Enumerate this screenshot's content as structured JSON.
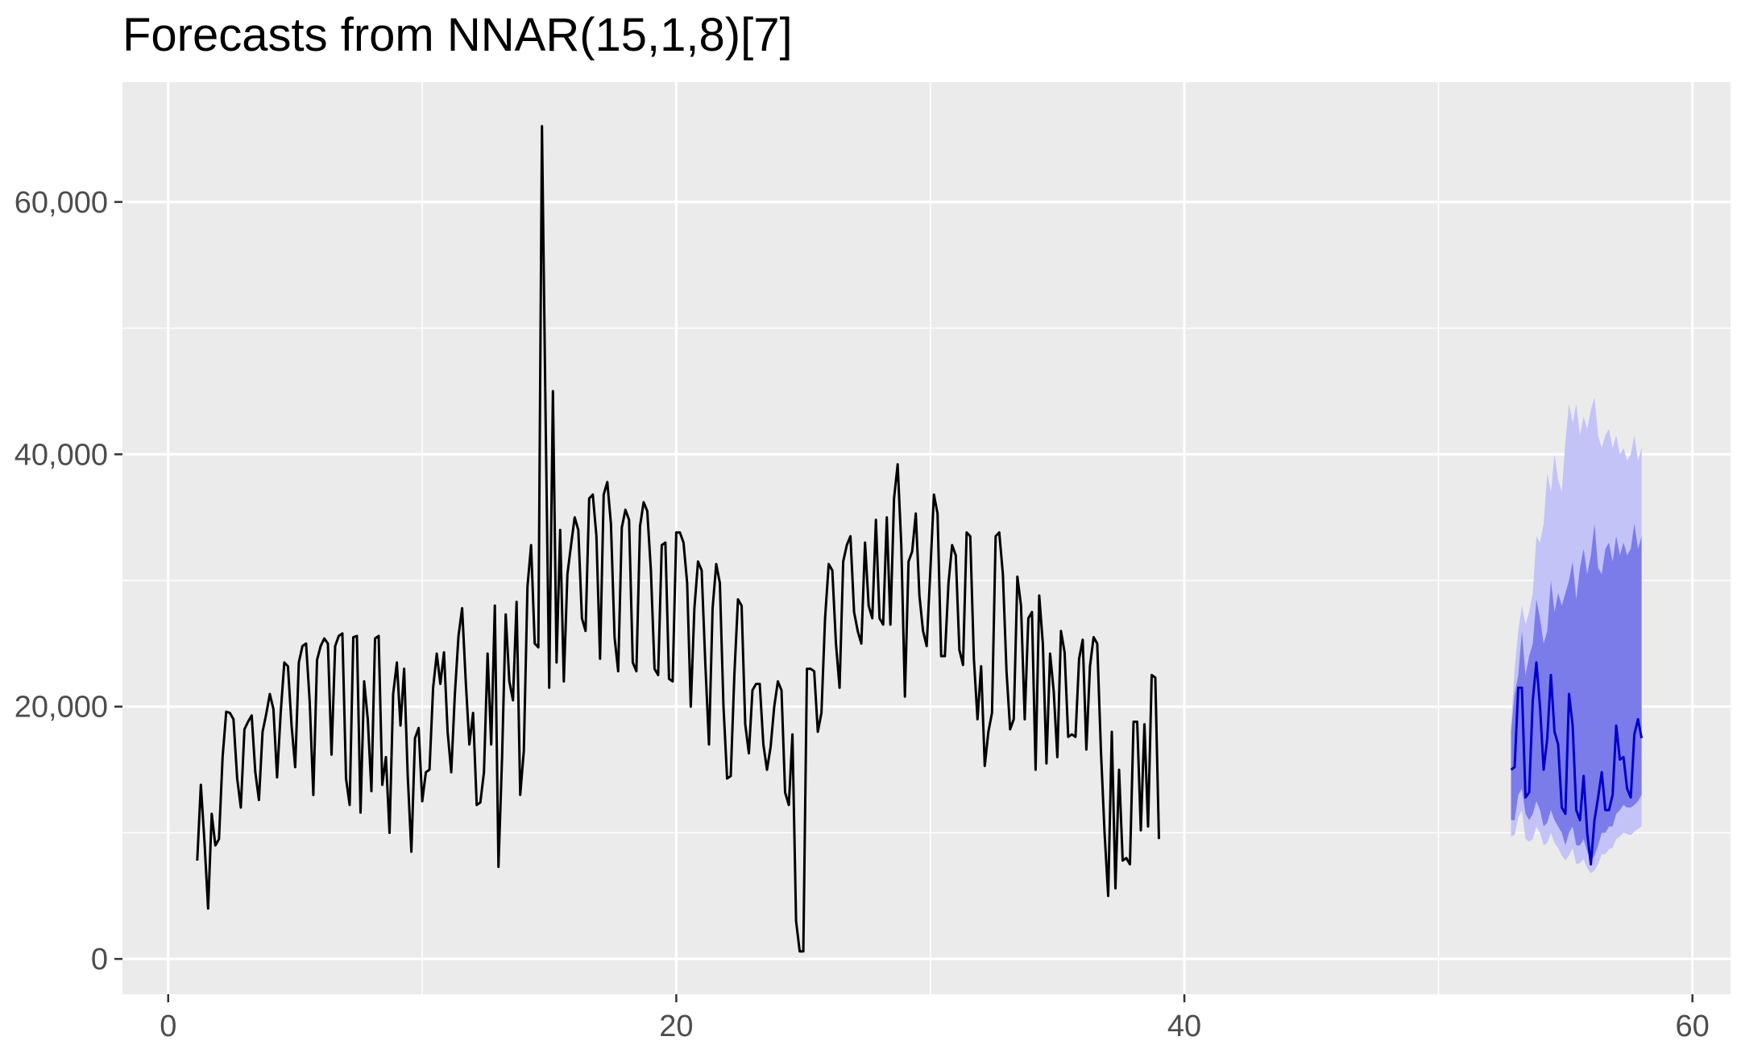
{
  "chart_data": {
    "type": "line",
    "title": "Forecasts from NNAR(15,1,8)[7]",
    "xlabel": "",
    "ylabel": "",
    "xlim": [
      -1.8,
      61.5
    ],
    "ylim": [
      -2800,
      69500
    ],
    "x_ticks": [
      0,
      20,
      40,
      60
    ],
    "x_tick_labels": [
      "0",
      "20",
      "40",
      "60"
    ],
    "y_ticks": [
      0,
      20000,
      40000,
      60000
    ],
    "y_tick_labels": [
      "0",
      "20,000",
      "40,000",
      "60,000"
    ],
    "grid": true,
    "background": "#ebebeb",
    "colors": {
      "history": "#000000",
      "forecast": "#0000cc",
      "band80": "#7b7bea",
      "band95": "#c3c3f8",
      "grid": "#ffffff"
    },
    "series": [
      {
        "name": "history",
        "step": 0.142857,
        "x0": 1.143,
        "values": [
          7800,
          13800,
          9300,
          4000,
          11500,
          9000,
          9500,
          16000,
          19600,
          19500,
          19000,
          14300,
          12000,
          18200,
          18800,
          19300,
          14800,
          12600,
          18000,
          19400,
          21000,
          19800,
          14400,
          19500,
          23500,
          23200,
          18500,
          15200,
          23500,
          24800,
          25000,
          20400,
          13000,
          23700,
          24800,
          25400,
          25000,
          16200,
          24800,
          25600,
          25800,
          14300,
          12200,
          25500,
          25600,
          11600,
          22000,
          19000,
          13300,
          25400,
          25600,
          13800,
          16000,
          10000,
          21000,
          23500,
          18500,
          23000,
          14500,
          8500,
          17500,
          18300,
          12500,
          14800,
          15000,
          21500,
          24200,
          21800,
          24300,
          18000,
          14800,
          21000,
          25600,
          27800,
          22000,
          17000,
          19500,
          12200,
          12400,
          14800,
          24200,
          17000,
          28000,
          7300,
          16000,
          27300,
          22000,
          20500,
          28300,
          13000,
          16500,
          29500,
          32800,
          25000,
          24700,
          66000,
          43000,
          21500,
          45000,
          23500,
          34000,
          22000,
          30500,
          32800,
          35000,
          34000,
          27000,
          26000,
          36500,
          36800,
          33500,
          23800,
          36800,
          37800,
          34500,
          25500,
          22800,
          34200,
          35600,
          34800,
          23500,
          22800,
          34300,
          36200,
          35500,
          30800,
          23000,
          22500,
          32800,
          33000,
          22200,
          22000,
          33800,
          33800,
          33000,
          29800,
          20000,
          27800,
          31500,
          30800,
          23500,
          17000,
          27800,
          31300,
          29800,
          20000,
          14300,
          14500,
          22500,
          28500,
          28000,
          18600,
          16300,
          21300,
          21800,
          21800,
          17000,
          15000,
          16800,
          20000,
          22000,
          21300,
          13200,
          12200,
          17800,
          3000,
          600,
          600,
          23000,
          23000,
          22800,
          18000,
          19500,
          27000,
          31300,
          30800,
          25000,
          21500,
          31500,
          32800,
          33500,
          27500,
          26000,
          25000,
          33000,
          28000,
          27000,
          34800,
          27000,
          26500,
          35000,
          26500,
          36500,
          39200,
          32800,
          20800,
          31500,
          32300,
          35300,
          28800,
          26000,
          24800,
          30700,
          36800,
          35300,
          24000,
          24000,
          29800,
          32800,
          32000,
          24500,
          23300,
          33800,
          33500,
          23800,
          19000,
          23200,
          15300,
          18000,
          19500,
          33500,
          33800,
          30500,
          22800,
          18200,
          19000,
          30300,
          28000,
          19000,
          27000,
          27500,
          15000,
          28800,
          25000,
          15500,
          24200,
          21200,
          16000,
          26000,
          24300,
          17600,
          17800,
          17600,
          23800,
          25300,
          16600,
          23200,
          25500,
          25000,
          16500,
          10000,
          5000,
          18000,
          5600,
          15000,
          7800,
          8000,
          7500,
          18800,
          18800,
          10200,
          18600,
          10500,
          22500,
          22300,
          9500
        ]
      },
      {
        "name": "forecast",
        "step": 0.142857,
        "x0": 52.857,
        "values": [
          15000,
          15200,
          21500,
          21500,
          12800,
          13200,
          20500,
          23500,
          20000,
          15000,
          17500,
          22500,
          18000,
          17000,
          12000,
          11500,
          21000,
          18500,
          11800,
          11000,
          14500,
          10000,
          7500,
          11000,
          12800,
          14800,
          11800,
          11800,
          13000,
          18500,
          15800,
          16000,
          13500,
          12800,
          17800,
          19000,
          17500
        ]
      },
      {
        "name": "pi80",
        "x0": 52.857,
        "step": 0.142857,
        "lower": [
          11000,
          11000,
          13000,
          13500,
          11500,
          11000,
          11500,
          12500,
          11800,
          10500,
          10800,
          11800,
          11000,
          10500,
          10000,
          9000,
          10000,
          10500,
          9000,
          9000,
          9500,
          8500,
          7800,
          8200,
          9000,
          10000,
          10000,
          10500,
          10500,
          11500,
          11800,
          12200,
          12000,
          12000,
          12200,
          12500,
          13000
        ],
        "upper": [
          18000,
          21000,
          22500,
          26000,
          22500,
          24000,
          25000,
          28500,
          27000,
          25000,
          26000,
          30000,
          27500,
          29000,
          28000,
          29000,
          30000,
          31500,
          28500,
          31000,
          32500,
          30500,
          32000,
          34500,
          31000,
          30500,
          32500,
          33000,
          31500,
          33500,
          32000,
          33000,
          32000,
          32500,
          34500,
          32500,
          33500
        ]
      },
      {
        "name": "pi95",
        "x0": 52.857,
        "step": 0.142857,
        "lower": [
          9700,
          9800,
          11200,
          11800,
          9500,
          9300,
          9500,
          10500,
          10000,
          9000,
          9200,
          10000,
          9200,
          8800,
          8200,
          7800,
          8200,
          8800,
          7500,
          7600,
          7900,
          7200,
          6800,
          7000,
          7500,
          8300,
          8300,
          8700,
          8800,
          9500,
          9700,
          10000,
          9900,
          9800,
          10100,
          10300,
          10500
        ],
        "upper": [
          18500,
          23000,
          26000,
          28000,
          26500,
          27500,
          29000,
          33500,
          33000,
          34500,
          38500,
          37000,
          40000,
          38000,
          37000,
          41000,
          44000,
          42500,
          44000,
          41500,
          43000,
          42000,
          43500,
          44500,
          41500,
          40500,
          41500,
          42000,
          40500,
          41500,
          40000,
          40500,
          39500,
          40000,
          41500,
          39500,
          40500
        ]
      }
    ]
  }
}
